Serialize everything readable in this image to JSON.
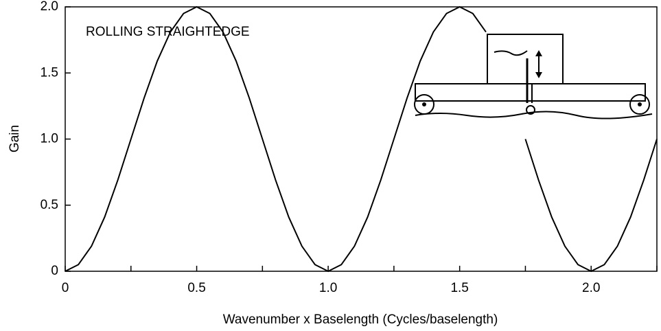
{
  "chart_data": {
    "type": "line",
    "annotation": "ROLLING STRAIGHTEDGE",
    "xlabel": "Wavenumber x Baselength (Cycles/baselength)",
    "ylabel": "Gain",
    "x": [
      0,
      0.05,
      0.1,
      0.15,
      0.2,
      0.25,
      0.3,
      0.35,
      0.4,
      0.45,
      0.5,
      0.55,
      0.6,
      0.65,
      0.7,
      0.75,
      0.8,
      0.85,
      0.9,
      0.95,
      1.0,
      1.05,
      1.1,
      1.15,
      1.2,
      1.25,
      1.3,
      1.35,
      1.4,
      1.45,
      1.5,
      1.55,
      1.6,
      1.65,
      1.7,
      1.75,
      1.8,
      1.85,
      1.9,
      1.95,
      2.0,
      2.05,
      2.1,
      2.15,
      2.2,
      2.25
    ],
    "series": [
      {
        "color": "#000000",
        "values": [
          0,
          0.05,
          0.19,
          0.41,
          0.69,
          1,
          1.31,
          1.59,
          1.81,
          1.95,
          2,
          1.95,
          1.81,
          1.59,
          1.31,
          1,
          0.69,
          0.41,
          0.19,
          0.05,
          0,
          0.05,
          0.19,
          0.41,
          0.69,
          1,
          1.31,
          1.59,
          1.81,
          1.95,
          2,
          1.95,
          1.81,
          null,
          null,
          1,
          0.69,
          0.41,
          0.19,
          0.05,
          0,
          0.05,
          0.19,
          0.41,
          0.69,
          1
        ]
      }
    ],
    "xlim": [
      0,
      2.25
    ],
    "ylim": [
      0,
      2
    ],
    "xticks": [
      0,
      0.5,
      {
        "value": 1,
        "label": "1.0"
      },
      1.5,
      {
        "value": 2,
        "label": "2.0"
      }
    ],
    "xminorticks": [
      0.25,
      0.75,
      1.25,
      1.75,
      2.25
    ],
    "yticks": [
      0,
      0.5,
      {
        "value": 1,
        "label": "1.0"
      },
      1.5,
      {
        "value": 2,
        "label": "2.0"
      }
    ],
    "grid": false
  }
}
